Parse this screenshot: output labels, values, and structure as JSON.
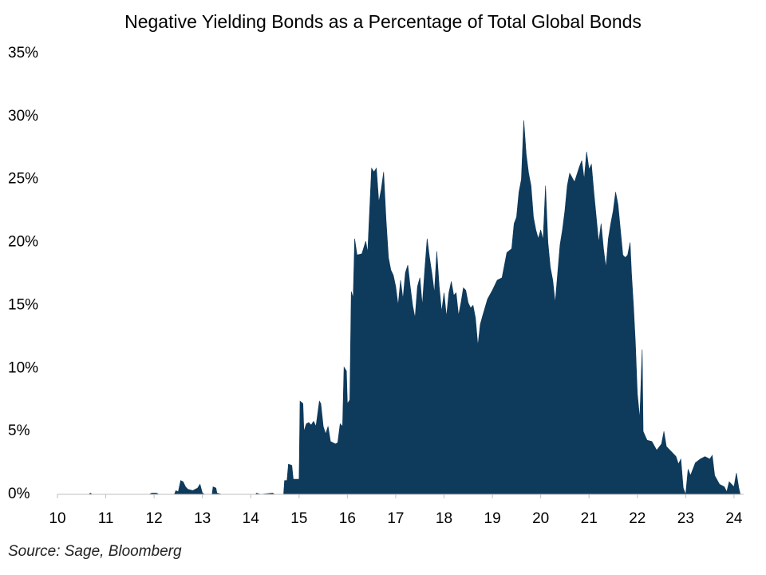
{
  "chart_data": {
    "type": "area",
    "title": "Negative Yielding Bonds as a Percentage of Total Global Bonds",
    "source": "Source: Sage, Bloomberg",
    "color": "#0e3a5c",
    "xlim": [
      10,
      24.2
    ],
    "xticks": [
      10,
      11,
      12,
      13,
      14,
      15,
      16,
      17,
      18,
      19,
      20,
      21,
      22,
      23,
      24
    ],
    "ylim": [
      0,
      35
    ],
    "yticks": [
      {
        "value": 0,
        "label": "0%"
      },
      {
        "value": 5,
        "label": "5%"
      },
      {
        "value": 10,
        "label": "10%"
      },
      {
        "value": 15,
        "label": "15%"
      },
      {
        "value": 20,
        "label": "20%"
      },
      {
        "value": 25,
        "label": "25%"
      },
      {
        "value": 30,
        "label": "30%"
      },
      {
        "value": 35,
        "label": "35%"
      }
    ],
    "x": [
      10,
      10.65,
      10.68,
      10.72,
      11.9,
      11.95,
      12.05,
      12.1,
      12.42,
      12.45,
      12.5,
      12.55,
      12.6,
      12.65,
      12.7,
      12.8,
      12.9,
      12.95,
      13,
      13.05,
      13.2,
      13.22,
      13.28,
      13.3,
      13.4,
      14.1,
      14.12,
      14.2,
      14.45,
      14.5,
      14.68,
      14.7,
      14.75,
      14.78,
      14.85,
      14.88,
      15,
      15.02,
      15.08,
      15.1,
      15.15,
      15.2,
      15.25,
      15.3,
      15.35,
      15.42,
      15.45,
      15.5,
      15.55,
      15.6,
      15.65,
      15.75,
      15.8,
      15.85,
      15.9,
      15.93,
      15.98,
      16,
      16.05,
      16.08,
      16.12,
      16.15,
      16.2,
      16.3,
      16.38,
      16.42,
      16.5,
      16.55,
      16.6,
      16.65,
      16.7,
      16.75,
      16.8,
      16.85,
      16.9,
      16.95,
      17,
      17.05,
      17.1,
      17.15,
      17.2,
      17.25,
      17.3,
      17.35,
      17.4,
      17.45,
      17.5,
      17.55,
      17.6,
      17.65,
      17.7,
      17.75,
      17.8,
      17.85,
      17.9,
      17.95,
      18,
      18.05,
      18.1,
      18.15,
      18.2,
      18.25,
      18.3,
      18.35,
      18.4,
      18.45,
      18.5,
      18.55,
      18.6,
      18.65,
      18.7,
      18.75,
      18.8,
      18.9,
      19,
      19.1,
      19.2,
      19.3,
      19.4,
      19.45,
      19.5,
      19.55,
      19.6,
      19.65,
      19.7,
      19.75,
      19.8,
      19.85,
      19.9,
      19.95,
      20,
      20.05,
      20.1,
      20.15,
      20.2,
      20.25,
      20.3,
      20.35,
      20.4,
      20.45,
      20.5,
      20.55,
      20.6,
      20.7,
      20.8,
      20.85,
      20.9,
      20.95,
      21,
      21.05,
      21.1,
      21.15,
      21.2,
      21.25,
      21.3,
      21.35,
      21.4,
      21.45,
      21.5,
      21.55,
      21.6,
      21.65,
      21.7,
      21.75,
      21.8,
      21.85,
      21.88,
      21.92,
      21.96,
      22,
      22.05,
      22.1,
      22.12,
      22.2,
      22.3,
      22.4,
      22.5,
      22.55,
      22.6,
      22.7,
      22.8,
      22.85,
      22.9,
      22.95,
      23,
      23.05,
      23.1,
      23.2,
      23.3,
      23.4,
      23.5,
      23.55,
      23.6,
      23.7,
      23.8,
      23.85,
      23.9,
      24,
      24.05,
      24.1,
      24.13
    ],
    "values": [
      0,
      0,
      0.1,
      0,
      0,
      0.1,
      0.1,
      0,
      0,
      0.3,
      0.2,
      1.1,
      1,
      0.6,
      0.4,
      0.3,
      0.5,
      0.8,
      0.1,
      0,
      0,
      0.6,
      0.5,
      0.1,
      0,
      0,
      0.1,
      0,
      0.1,
      0,
      0,
      1.1,
      1.1,
      2.4,
      2.3,
      1.2,
      1.2,
      7.4,
      7.2,
      5,
      5.6,
      5.7,
      5.5,
      5.8,
      5.4,
      7.4,
      7.2,
      5.4,
      4.8,
      5.4,
      4.2,
      4,
      4.1,
      5.6,
      5.4,
      10.1,
      9.8,
      7.2,
      7.5,
      16.1,
      15.6,
      20.3,
      19,
      19.1,
      20.1,
      19.2,
      25.9,
      25.6,
      25.9,
      23.2,
      24.2,
      25.6,
      21.8,
      18.8,
      17.8,
      17.4,
      16.5,
      15,
      17,
      15.5,
      17.6,
      18.2,
      16.5,
      15,
      14,
      16.5,
      17.2,
      15,
      17.8,
      20.3,
      18.8,
      17.5,
      16,
      19.3,
      16.5,
      14.5,
      16,
      14.1,
      16,
      16.9,
      15.8,
      16,
      14.2,
      15.2,
      16.4,
      16.2,
      15.2,
      14.8,
      15,
      14,
      11.8,
      13.5,
      14.2,
      15.5,
      16.2,
      17,
      17.2,
      19.2,
      19.5,
      21.5,
      22,
      24,
      25,
      29.7,
      27,
      25.5,
      24.5,
      22,
      21,
      20.3,
      21,
      20.2,
      24.5,
      20,
      18,
      17,
      15.2,
      17.5,
      19.8,
      21,
      22.5,
      24.5,
      25.5,
      24.8,
      26,
      26.5,
      25,
      27.2,
      25.8,
      26.2,
      24,
      22,
      20,
      21.5,
      19.5,
      18,
      20.3,
      21.5,
      22.5,
      24,
      23,
      21,
      19,
      18.8,
      19,
      20,
      17.5,
      15,
      12,
      8,
      6,
      11.5,
      5,
      4.3,
      4.2,
      3.5,
      4,
      5,
      3.8,
      3.4,
      3,
      2.4,
      2.8,
      0.5,
      0,
      2,
      1.5,
      2.5,
      2.8,
      3,
      2.8,
      3.1,
      1.5,
      0.8,
      0.6,
      0.2,
      1,
      0.6,
      1.7,
      0.5,
      0
    ]
  }
}
